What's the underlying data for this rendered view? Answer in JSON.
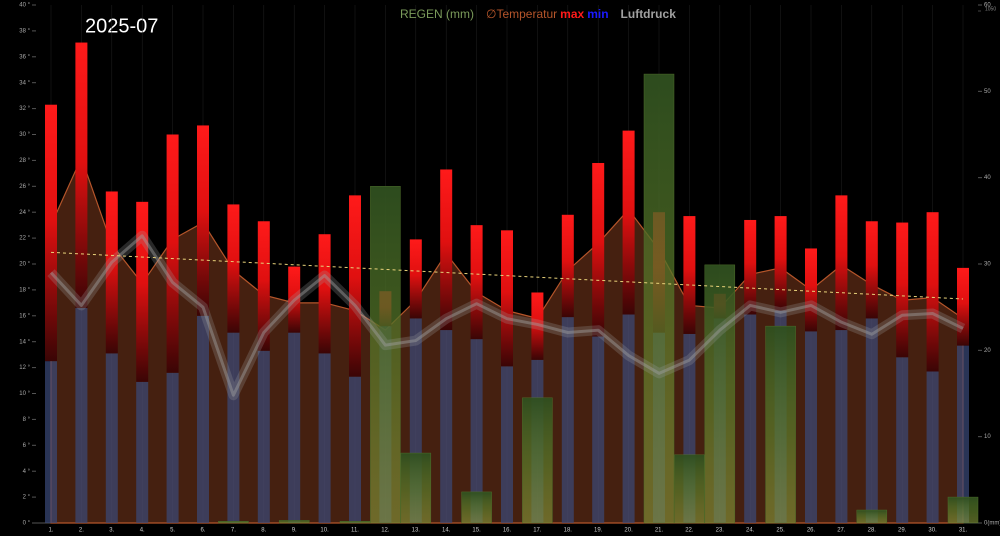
{
  "chart_data": {
    "type": "weather-combo",
    "title": "2025-07",
    "categories": [
      "1.",
      "2.",
      "3.",
      "4.",
      "5.",
      "6.",
      "7.",
      "8.",
      "9.",
      "10.",
      "11.",
      "12.",
      "13.",
      "14.",
      "15.",
      "16.",
      "17.",
      "18.",
      "19.",
      "20.",
      "21.",
      "22.",
      "23.",
      "24.",
      "25.",
      "26.",
      "27.",
      "28.",
      "29.",
      "30.",
      "31."
    ],
    "series": [
      {
        "name": "REGEN (mm)",
        "color": "#6a9a3a",
        "axis": "y2",
        "values": [
          0,
          0,
          0,
          0,
          0,
          0,
          0.2,
          0,
          0.3,
          0,
          0.2,
          39.0,
          8.1,
          0,
          3.6,
          0,
          14.5,
          0,
          0,
          0,
          52.0,
          7.9,
          29.9,
          0,
          22.8,
          0,
          0,
          1.5,
          0,
          0,
          3.0
        ]
      },
      {
        "name": "∅Temperatur",
        "color": "#b5552a",
        "values": [
          23.0,
          28.2,
          21.5,
          18.5,
          21.9,
          23.2,
          19.5,
          17.6,
          17.0,
          17.0,
          16.4,
          14.9,
          17.2,
          20.8,
          17.8,
          16.4,
          15.8,
          19.5,
          21.6,
          24.2,
          21.1,
          16.8,
          16.6,
          19.2,
          19.7,
          18.0,
          19.9,
          18.4,
          17.2,
          17.4,
          15.8
        ]
      },
      {
        "name": "max",
        "color": "#ff1a1a",
        "values": [
          32.3,
          37.1,
          25.6,
          24.8,
          30.0,
          30.7,
          24.6,
          23.3,
          19.8,
          22.3,
          25.3,
          17.9,
          21.9,
          27.3,
          23.0,
          22.6,
          17.8,
          23.8,
          27.8,
          30.3,
          24.0,
          23.7,
          17.7,
          23.4,
          23.7,
          21.2,
          25.3,
          23.3,
          23.2,
          24.0,
          19.7
        ]
      },
      {
        "name": "min",
        "color": "#1a1aff",
        "values": [
          12.5,
          16.6,
          13.1,
          10.9,
          11.6,
          16.0,
          14.7,
          13.3,
          14.7,
          13.1,
          11.3,
          15.2,
          15.8,
          14.9,
          14.2,
          12.1,
          12.6,
          15.9,
          14.4,
          16.1,
          14.7,
          14.6,
          15.8,
          16.1,
          16.4,
          14.8,
          14.9,
          15.8,
          12.8,
          11.7,
          13.7
        ]
      },
      {
        "name": "Luftdruck",
        "color": "#a0a0a0",
        "axis": "y3",
        "values": [
          1003.5,
          997.8,
          1005.3,
          1009.9,
          1001.8,
          997.5,
          982.2,
          993.1,
          998.7,
          1003.0,
          997.8,
          990.9,
          991.7,
          995.5,
          998.1,
          995.5,
          994.5,
          993.1,
          993.5,
          989.1,
          986.0,
          988.3,
          993.5,
          997.8,
          996.6,
          997.8,
          994.9,
          992.8,
          996.1,
          996.4,
          993.8
        ]
      }
    ],
    "trend": {
      "color": "#e8d27a",
      "values": [
        20.9,
        17.3
      ]
    },
    "ylim": [
      0,
      40
    ],
    "yticks": [
      {
        "value": 0,
        "label": "0 °"
      },
      {
        "value": 2,
        "label": "2 °"
      },
      {
        "value": 4,
        "label": "4 °"
      },
      {
        "value": 6,
        "label": "6 °"
      },
      {
        "value": 8,
        "label": "8 °"
      },
      {
        "value": 10,
        "label": "10 °"
      },
      {
        "value": 12,
        "label": "12 °"
      },
      {
        "value": 14,
        "label": "14 °"
      },
      {
        "value": 16,
        "label": "16 °"
      },
      {
        "value": 18,
        "label": "18 °"
      },
      {
        "value": 20,
        "label": "20 °"
      },
      {
        "value": 22,
        "label": "22 °"
      },
      {
        "value": 24,
        "label": "24 °"
      },
      {
        "value": 26,
        "label": "26 °"
      },
      {
        "value": 28,
        "label": "28 °"
      },
      {
        "value": 30,
        "label": "30 °"
      },
      {
        "value": 32,
        "label": "32 °"
      },
      {
        "value": 34,
        "label": "34 °"
      },
      {
        "value": 36,
        "label": "36 °"
      },
      {
        "value": 38,
        "label": "38 °"
      },
      {
        "value": 40,
        "label": "40 °"
      }
    ],
    "y2lim": [
      0,
      60
    ],
    "y2ticks": [
      {
        "value": 0,
        "label": "0(mm)"
      },
      10,
      20,
      30,
      40,
      50,
      60
    ],
    "y3lim": [
      960,
      1050
    ],
    "y3ticks": [
      1050
    ]
  }
}
